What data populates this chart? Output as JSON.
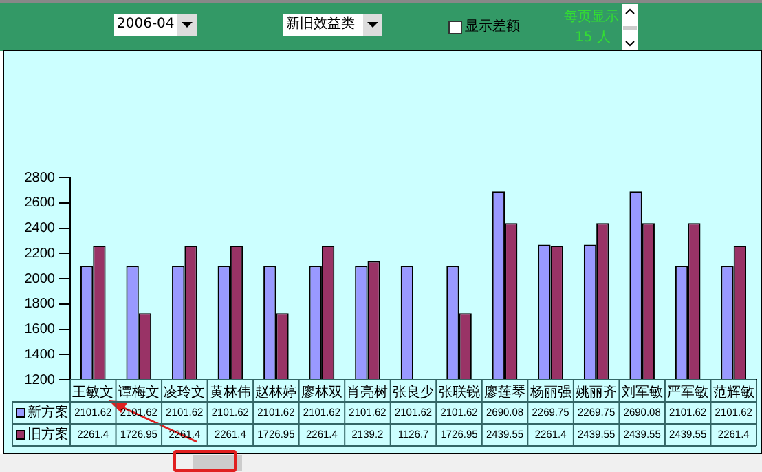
{
  "chart_data": {
    "type": "bar",
    "categories": [
      "王敏文",
      "谭梅文",
      "凌玲文",
      "黄林伟",
      "赵林婷",
      "廖林双",
      "肖亮树",
      "张良少",
      "张联锐",
      "廖莲琴",
      "杨丽强",
      "姚丽齐",
      "刘军敏",
      "严军敏",
      "范辉敏"
    ],
    "series": [
      {
        "name": "新方案",
        "color": "#9999ff",
        "values": [
          2101.62,
          2101.62,
          2101.62,
          2101.62,
          2101.62,
          2101.62,
          2101.62,
          2101.62,
          2101.62,
          2690.08,
          2269.75,
          2269.75,
          2690.08,
          2101.62,
          2101.62
        ],
        "value_labels": [
          "2101.62",
          "2101.62",
          "2101.62",
          "2101.62",
          "2101.62",
          "2101.62",
          "2101.62",
          "2101.62",
          "2101.62",
          "2690.08",
          "2269.75",
          "2269.75",
          "2690.08",
          "2101.62",
          "2101.62"
        ]
      },
      {
        "name": "旧方案",
        "color": "#993366",
        "values": [
          2261.4,
          1726.95,
          2261.4,
          2261.4,
          1726.95,
          2261.4,
          2139.2,
          null,
          1726.95,
          2439.55,
          2261.4,
          2439.55,
          2439.55,
          2439.55,
          2261.4
        ],
        "value_labels": [
          "2261.4",
          "1726.95",
          "2261.4",
          "2261.4",
          "1726.95",
          "2261.4",
          "2139.2",
          "1126.7",
          "1726.95",
          "2439.55",
          "2261.4",
          "2439.55",
          "2439.55",
          "2439.55",
          "2261.4"
        ]
      }
    ],
    "ylim": [
      1200,
      2800
    ],
    "yticks": [
      1200,
      1400,
      1600,
      1800,
      2000,
      2200,
      2400,
      2600,
      2800
    ],
    "grid": false,
    "legend": "bottom left",
    "annotations": [
      "2006-04",
      "新旧效益类",
      "显示差额",
      "每页显示",
      "15 人"
    ]
  }
}
